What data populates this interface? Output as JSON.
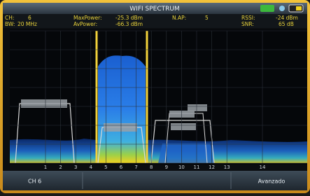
{
  "header": {
    "title": "WIFI SPECTRUM"
  },
  "info": [
    {
      "label": "CH:",
      "value": "6"
    },
    {
      "label": "BW:",
      "value": "20 MHz"
    },
    {
      "label": "MaxPower:",
      "value": "-25.3 dBm"
    },
    {
      "label": "AvPower:",
      "value": "-66.3 dBm"
    },
    {
      "label": "N.AP:",
      "value": "5"
    },
    {
      "label": "RSSI:",
      "value": "-24 dBm"
    },
    {
      "label": "SNR:",
      "value": "65 dB"
    }
  ],
  "channels": [
    1,
    2,
    3,
    4,
    5,
    6,
    7,
    8,
    9,
    10,
    11,
    12,
    13,
    14
  ],
  "buttons": [
    "CH 6",
    "Avanzado"
  ]
}
